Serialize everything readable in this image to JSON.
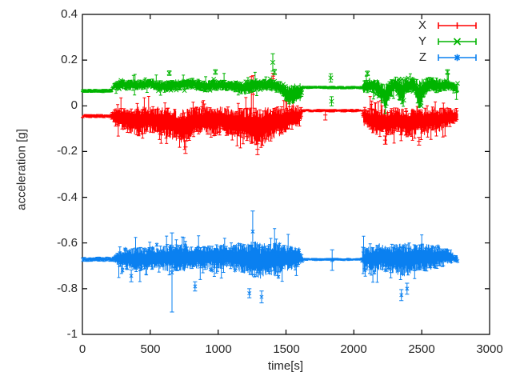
{
  "window": {
    "background": "#ffffff"
  },
  "chart_data": {
    "type": "scatter",
    "style": "errorbars",
    "title": "",
    "xlabel": "time[s]",
    "ylabel": "acceleration [g]",
    "xlim": [
      0,
      3000
    ],
    "ylim": [
      -1,
      0.4
    ],
    "grid": false,
    "axis_color": "#000000",
    "text_color": "#262626",
    "xticks": [
      0,
      500,
      1000,
      1500,
      2000,
      2500,
      3000
    ],
    "yticks": [
      0.4,
      0.2,
      0,
      -0.2,
      -0.4,
      -0.6,
      -0.8,
      -1
    ],
    "xtick_labels": [
      "0",
      "500",
      "1000",
      "1500",
      "2000",
      "2500",
      "3000"
    ],
    "ytick_labels": [
      "0.4",
      "0.2",
      "0",
      "-0.2",
      "-0.4",
      "-0.6",
      "-0.8",
      "-1"
    ],
    "legend": {
      "position": "top-right",
      "border": false
    },
    "series": [
      {
        "name": "X",
        "color": "#ff0000",
        "marker": "plus",
        "err_prob": 0.12,
        "err_extra": 0.04,
        "t_start": 0,
        "t_end": 2766,
        "envelope": [
          [
            0,
            -0.052,
            -0.038
          ],
          [
            210,
            -0.052,
            -0.036
          ],
          [
            240,
            -0.09,
            -0.008
          ],
          [
            300,
            -0.11,
            -0.002
          ],
          [
            360,
            -0.122,
            -0.008
          ],
          [
            420,
            -0.135,
            -0.002
          ],
          [
            480,
            -0.118,
            -0.004
          ],
          [
            540,
            -0.128,
            -0.002
          ],
          [
            600,
            -0.132,
            -0.006
          ],
          [
            660,
            -0.148,
            -0.01
          ],
          [
            720,
            -0.165,
            -0.015
          ],
          [
            780,
            -0.16,
            -0.01
          ],
          [
            840,
            -0.132,
            -0.004
          ],
          [
            900,
            -0.12,
            -0.002
          ],
          [
            960,
            -0.136,
            -0.006
          ],
          [
            1020,
            -0.122,
            0.002
          ],
          [
            1080,
            -0.135,
            -0.004
          ],
          [
            1140,
            -0.148,
            -0.008
          ],
          [
            1200,
            -0.16,
            -0.004
          ],
          [
            1260,
            -0.172,
            -0.008
          ],
          [
            1310,
            -0.178,
            -0.012
          ],
          [
            1360,
            -0.16,
            -0.004
          ],
          [
            1420,
            -0.142,
            -0.002
          ],
          [
            1480,
            -0.126,
            -0.002
          ],
          [
            1540,
            -0.105,
            0.004
          ],
          [
            1605,
            -0.082,
            -0.002
          ],
          [
            1625,
            -0.027,
            -0.015
          ],
          [
            2060,
            -0.027,
            -0.015
          ],
          [
            2075,
            -0.095,
            -0.004
          ],
          [
            2130,
            -0.118,
            -0.008
          ],
          [
            2190,
            -0.13,
            -0.01
          ],
          [
            2250,
            -0.14,
            -0.012
          ],
          [
            2300,
            -0.122,
            -0.004
          ],
          [
            2360,
            -0.132,
            -0.008
          ],
          [
            2420,
            -0.14,
            -0.01
          ],
          [
            2470,
            -0.122,
            -0.004
          ],
          [
            2520,
            -0.13,
            -0.01
          ],
          [
            2570,
            -0.112,
            -0.004
          ],
          [
            2620,
            -0.12,
            -0.01
          ],
          [
            2670,
            -0.1,
            -0.004
          ],
          [
            2720,
            -0.088,
            -0.006
          ],
          [
            2766,
            -0.06,
            -0.022
          ]
        ],
        "outliers": [
          [
            760,
            -0.18,
            -0.208,
            -0.152
          ],
          [
            1245,
            0.06,
            -0.05,
            0.128
          ],
          [
            1258,
            0.05,
            -0.05,
            0.132
          ],
          [
            1290,
            -0.19,
            -0.214,
            -0.166
          ],
          [
            1405,
            0.13,
            0.118,
            0.142
          ],
          [
            1790,
            -0.04,
            -0.062,
            -0.018
          ],
          [
            2230,
            -0.15,
            -0.168,
            -0.132
          ],
          [
            2480,
            -0.155,
            -0.172,
            -0.138
          ]
        ]
      },
      {
        "name": "Y",
        "color": "#00b400",
        "marker": "x",
        "err_prob": 0.06,
        "err_extra": 0.025,
        "t_start": 0,
        "t_end": 2766,
        "envelope": [
          [
            0,
            0.058,
            0.072
          ],
          [
            210,
            0.058,
            0.074
          ],
          [
            240,
            0.068,
            0.108
          ],
          [
            300,
            0.072,
            0.118
          ],
          [
            400,
            0.066,
            0.112
          ],
          [
            500,
            0.072,
            0.12
          ],
          [
            600,
            0.058,
            0.108
          ],
          [
            700,
            0.068,
            0.118
          ],
          [
            800,
            0.072,
            0.124
          ],
          [
            900,
            0.06,
            0.11
          ],
          [
            1000,
            0.068,
            0.115
          ],
          [
            1100,
            0.062,
            0.11
          ],
          [
            1200,
            0.048,
            0.105
          ],
          [
            1260,
            0.058,
            0.118
          ],
          [
            1300,
            0.068,
            0.118
          ],
          [
            1400,
            0.062,
            0.115
          ],
          [
            1460,
            0.052,
            0.108
          ],
          [
            1510,
            0.0,
            0.09
          ],
          [
            1560,
            0.008,
            0.098
          ],
          [
            1605,
            0.02,
            0.1
          ],
          [
            1625,
            0.074,
            0.086
          ],
          [
            2060,
            0.074,
            0.086
          ],
          [
            2075,
            0.05,
            0.115
          ],
          [
            2120,
            0.06,
            0.125
          ],
          [
            2180,
            0.04,
            0.115
          ],
          [
            2230,
            -0.015,
            0.1
          ],
          [
            2270,
            0.03,
            0.12
          ],
          [
            2310,
            0.06,
            0.13
          ],
          [
            2350,
            0.0,
            0.118
          ],
          [
            2390,
            0.05,
            0.128
          ],
          [
            2440,
            0.06,
            0.13
          ],
          [
            2480,
            -0.02,
            0.11
          ],
          [
            2520,
            0.04,
            0.125
          ],
          [
            2570,
            0.062,
            0.128
          ],
          [
            2620,
            0.055,
            0.122
          ],
          [
            2680,
            0.065,
            0.115
          ],
          [
            2720,
            0.06,
            0.108
          ],
          [
            2766,
            0.055,
            0.095
          ]
        ],
        "outliers": [
          [
            640,
            0.143,
            0.133,
            0.153
          ],
          [
            980,
            0.148,
            0.138,
            0.158
          ],
          [
            1403,
            0.19,
            0.152,
            0.228
          ],
          [
            1415,
            0.148,
            0.136,
            0.16
          ],
          [
            1830,
            0.122,
            0.104,
            0.14
          ],
          [
            1836,
            0.02,
            0.0,
            0.04
          ],
          [
            2100,
            0.142,
            0.132,
            0.152
          ],
          [
            2690,
            0.148,
            0.138,
            0.158
          ]
        ]
      },
      {
        "name": "Z",
        "color": "#0a80f0",
        "marker": "star",
        "err_prob": 0.1,
        "err_extra": 0.05,
        "t_start": 0,
        "t_end": 2766,
        "envelope": [
          [
            0,
            -0.681,
            -0.663
          ],
          [
            235,
            -0.681,
            -0.661
          ],
          [
            265,
            -0.705,
            -0.635
          ],
          [
            330,
            -0.718,
            -0.622
          ],
          [
            400,
            -0.728,
            -0.615
          ],
          [
            470,
            -0.718,
            -0.62
          ],
          [
            540,
            -0.715,
            -0.617
          ],
          [
            610,
            -0.722,
            -0.61
          ],
          [
            660,
            -0.728,
            -0.602
          ],
          [
            720,
            -0.72,
            -0.6
          ],
          [
            780,
            -0.728,
            -0.604
          ],
          [
            840,
            -0.712,
            -0.61
          ],
          [
            900,
            -0.72,
            -0.614
          ],
          [
            960,
            -0.71,
            -0.61
          ],
          [
            1020,
            -0.722,
            -0.602
          ],
          [
            1080,
            -0.716,
            -0.608
          ],
          [
            1140,
            -0.722,
            -0.604
          ],
          [
            1200,
            -0.738,
            -0.597
          ],
          [
            1255,
            -0.748,
            -0.59
          ],
          [
            1310,
            -0.758,
            -0.6
          ],
          [
            1360,
            -0.742,
            -0.6
          ],
          [
            1420,
            -0.748,
            -0.596
          ],
          [
            1480,
            -0.73,
            -0.602
          ],
          [
            1540,
            -0.718,
            -0.61
          ],
          [
            1600,
            -0.702,
            -0.618
          ],
          [
            1628,
            -0.677,
            -0.667
          ],
          [
            2058,
            -0.677,
            -0.667
          ],
          [
            2075,
            -0.718,
            -0.62
          ],
          [
            2130,
            -0.728,
            -0.61
          ],
          [
            2190,
            -0.72,
            -0.6
          ],
          [
            2250,
            -0.728,
            -0.606
          ],
          [
            2310,
            -0.738,
            -0.6
          ],
          [
            2360,
            -0.748,
            -0.595
          ],
          [
            2410,
            -0.738,
            -0.6
          ],
          [
            2460,
            -0.722,
            -0.608
          ],
          [
            2510,
            -0.728,
            -0.6
          ],
          [
            2560,
            -0.72,
            -0.606
          ],
          [
            2610,
            -0.712,
            -0.61
          ],
          [
            2660,
            -0.702,
            -0.615
          ],
          [
            2700,
            -0.692,
            -0.62
          ],
          [
            2740,
            -0.688,
            -0.65
          ],
          [
            2766,
            -0.684,
            -0.656
          ]
        ],
        "outliers": [
          [
            360,
            -0.744,
            -0.77,
            -0.718
          ],
          [
            660,
            -0.73,
            -0.902,
            -0.556
          ],
          [
            830,
            -0.79,
            -0.81,
            -0.77
          ],
          [
            1230,
            -0.82,
            -0.84,
            -0.8
          ],
          [
            1255,
            -0.55,
            -0.64,
            -0.46
          ],
          [
            1320,
            -0.836,
            -0.862,
            -0.81
          ],
          [
            1840,
            -0.675,
            -0.72,
            -0.63
          ],
          [
            2350,
            -0.828,
            -0.852,
            -0.804
          ],
          [
            2392,
            -0.8,
            -0.824,
            -0.776
          ]
        ]
      }
    ]
  }
}
